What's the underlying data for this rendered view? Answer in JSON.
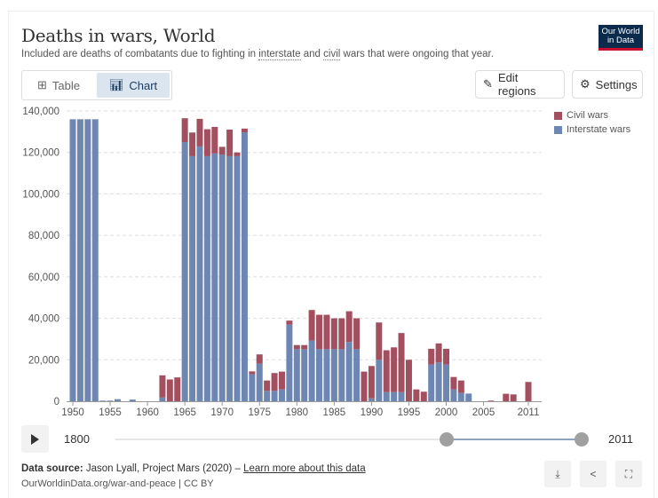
{
  "header": {
    "title": "Deaths in wars, World",
    "subtitle_pre": "Included are deaths of combatants due to fighting in ",
    "subtitle_link1": "interstate",
    "subtitle_mid": " and ",
    "subtitle_link2": "civil",
    "subtitle_post": " wars that were ongoing that year.",
    "logo_line1": "Our World",
    "logo_line2": "in Data"
  },
  "tabs": [
    {
      "label": "Table",
      "icon": "table-icon"
    },
    {
      "label": "Chart",
      "icon": "bar-chart-icon",
      "active": true
    }
  ],
  "toolbar": {
    "edit_regions": "Edit regions",
    "settings": "Settings"
  },
  "timeline": {
    "min_label": "1800",
    "max_label": "2011",
    "range_min": 1800,
    "range_max": 2011,
    "start_year": 1950,
    "end_year": 2011
  },
  "footer": {
    "source_label": "Data source:",
    "source_text": " Jason Lyall, Project Mars (2020) – ",
    "learn_more": "Learn more about this data",
    "url": "OurWorldinData.org/war-and-peace | CC BY"
  },
  "colors": {
    "civil": "#a2505f",
    "interstate": "#6d87b2"
  },
  "chart_data": {
    "type": "bar",
    "stacked": true,
    "title": "Deaths in wars, World",
    "xlabel": "",
    "ylabel": "",
    "ylim": [
      0,
      140000
    ],
    "yticks": [
      0,
      20000,
      40000,
      60000,
      80000,
      100000,
      120000,
      140000
    ],
    "ytick_labels": [
      "0",
      "20,000",
      "40,000",
      "60,000",
      "80,000",
      "100,000",
      "120,000",
      "140,000"
    ],
    "xticks": [
      1950,
      1955,
      1960,
      1965,
      1970,
      1975,
      1980,
      1985,
      1990,
      1995,
      2000,
      2005,
      2011
    ],
    "legend": "top-right",
    "x": [
      1950,
      1951,
      1952,
      1953,
      1954,
      1955,
      1956,
      1957,
      1958,
      1959,
      1960,
      1961,
      1962,
      1963,
      1964,
      1965,
      1966,
      1967,
      1968,
      1969,
      1970,
      1971,
      1972,
      1973,
      1974,
      1975,
      1976,
      1977,
      1978,
      1979,
      1980,
      1981,
      1982,
      1983,
      1984,
      1985,
      1986,
      1987,
      1988,
      1989,
      1990,
      1991,
      1992,
      1993,
      1994,
      1995,
      1996,
      1997,
      1998,
      1999,
      2000,
      2001,
      2002,
      2003,
      2004,
      2005,
      2006,
      2007,
      2008,
      2009,
      2010,
      2011
    ],
    "series": [
      {
        "name": "Interstate wars",
        "values": [
          136000,
          136000,
          136000,
          136000,
          300,
          300,
          1000,
          0,
          800,
          0,
          0,
          0,
          1800,
          0,
          0,
          125000,
          118200,
          122900,
          118200,
          119500,
          119000,
          118200,
          118200,
          129700,
          13000,
          18100,
          5000,
          5000,
          5700,
          36900,
          25100,
          25100,
          29300,
          25100,
          25100,
          25100,
          25100,
          28600,
          25100,
          0,
          1400,
          20000,
          4400,
          4400,
          4400,
          0,
          0,
          0,
          17700,
          18700,
          17700,
          5700,
          4000,
          3700,
          0,
          0,
          0,
          0,
          0,
          0,
          0,
          0
        ]
      },
      {
        "name": "Civil wars",
        "values": [
          0,
          0,
          0,
          0,
          0,
          0,
          0,
          0,
          0,
          0,
          0,
          0,
          10700,
          10500,
          11500,
          11500,
          11400,
          13300,
          13000,
          12800,
          3700,
          12800,
          1800,
          1800,
          1400,
          4500,
          5000,
          8600,
          8600,
          2000,
          2000,
          2000,
          14700,
          16600,
          16600,
          14900,
          14900,
          14800,
          14900,
          14300,
          15600,
          18000,
          20200,
          21600,
          28500,
          20000,
          5700,
          4600,
          7600,
          9200,
          7600,
          6000,
          6000,
          0,
          0,
          0,
          300,
          0,
          3600,
          3300,
          0,
          9300
        ]
      }
    ]
  }
}
